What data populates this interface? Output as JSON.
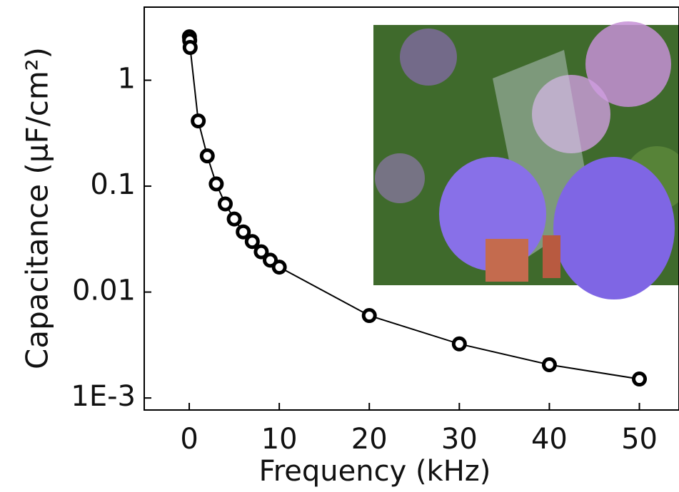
{
  "chart_data": {
    "type": "line",
    "log_y": true,
    "x_label": "Frequency (kHz)",
    "y_label": "Capacitance (μF/cm²)",
    "x": [
      0.02,
      0.05,
      0.1,
      1,
      2,
      3,
      4,
      5,
      6,
      7,
      8,
      9,
      10,
      20,
      30,
      40,
      50
    ],
    "series": [
      {
        "color": "#000000",
        "values": [
          2.57,
          2.38,
          2.04,
          0.413,
          0.193,
          0.105,
          0.068,
          0.049,
          0.037,
          0.03,
          0.024,
          0.02,
          0.0172,
          0.006,
          0.00324,
          0.00206,
          0.00151
        ]
      }
    ],
    "xlim": [
      -5,
      54.4
    ],
    "xticks": [
      0,
      10,
      20,
      30,
      40,
      50
    ],
    "ylim": [
      0.00077,
      4.9
    ],
    "yticks": [
      1,
      0.1,
      0.01,
      {
        "value": 0.001,
        "label": "1E-3"
      }
    ]
  }
}
